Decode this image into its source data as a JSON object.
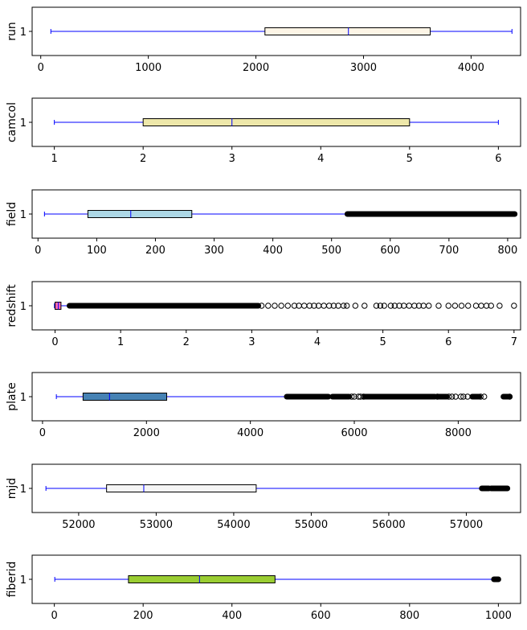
{
  "chart_data": [
    {
      "type": "boxplot",
      "ylabel": "run",
      "category": "1",
      "xlim": [
        -80,
        4460
      ],
      "xticks": [
        0,
        1000,
        2000,
        3000,
        4000
      ],
      "box": {
        "whisker_low": 94,
        "q1": 2084,
        "median": 2860,
        "q3": 3620,
        "whisker_high": 4380
      },
      "fill": "#fdf5e6",
      "outliers": []
    },
    {
      "type": "boxplot",
      "ylabel": "camcol",
      "category": "1",
      "xlim": [
        0.75,
        6.25
      ],
      "xticks": [
        1,
        2,
        3,
        4,
        5,
        6
      ],
      "box": {
        "whisker_low": 1,
        "q1": 2,
        "median": 3,
        "q3": 5,
        "whisker_high": 6
      },
      "fill": "#eee8aa",
      "outliers": []
    },
    {
      "type": "boxplot",
      "ylabel": "field",
      "category": "1",
      "xlim": [
        -10,
        822
      ],
      "xticks": [
        0,
        100,
        200,
        300,
        400,
        500,
        600,
        700,
        800
      ],
      "box": {
        "whisker_low": 11,
        "q1": 85,
        "median": 158,
        "q3": 262,
        "whisker_high": 525
      },
      "fill": "#add8e6",
      "outliers": [
        {
          "from": 527,
          "to": 812,
          "solid": true
        }
      ]
    },
    {
      "type": "boxplot",
      "ylabel": "redshift",
      "category": "1",
      "xlim": [
        -0.35,
        7.1
      ],
      "xticks": [
        0,
        1,
        2,
        3,
        4,
        5,
        6,
        7
      ],
      "box": {
        "whisker_low": -0.01,
        "q1": 0.0,
        "median": 0.05,
        "q3": 0.09,
        "whisker_high": 0.22
      },
      "fill": "#ff69b4",
      "outliers": [
        {
          "from": 0.22,
          "to": 3.1,
          "solid": true
        },
        {
          "from": 3.1,
          "to": 4.5,
          "solid": false,
          "values": [
            3.15,
            3.25,
            3.35,
            3.45,
            3.55,
            3.65,
            3.72,
            3.8,
            3.88,
            3.95,
            4.02,
            4.1,
            4.18,
            4.25,
            4.32,
            4.4,
            4.45
          ]
        },
        {
          "from": 4.5,
          "to": 7.0,
          "solid": false,
          "values": [
            4.58,
            4.72,
            4.9,
            4.96,
            5.02,
            5.12,
            5.18,
            5.25,
            5.32,
            5.4,
            5.48,
            5.55,
            5.62,
            5.7,
            5.85,
            6.0,
            6.1,
            6.2,
            6.3,
            6.42,
            6.5,
            6.58,
            6.65,
            6.78,
            7.0
          ]
        }
      ]
    },
    {
      "type": "boxplot",
      "ylabel": "plate",
      "category": "1",
      "xlim": [
        -200,
        9200
      ],
      "xticks": [
        0,
        2000,
        4000,
        6000,
        8000
      ],
      "box": {
        "whisker_low": 266,
        "q1": 780,
        "median": 1290,
        "q3": 2390,
        "whisker_high": 4700
      },
      "fill": "#4682b4",
      "outliers": [
        {
          "from": 4700,
          "to": 5500,
          "solid": true
        },
        {
          "from": 5580,
          "to": 5900,
          "solid": true
        },
        {
          "from": 6200,
          "to": 7550,
          "solid": true
        },
        {
          "from": 7620,
          "to": 7780,
          "solid": true
        },
        {
          "from": 8270,
          "to": 8400,
          "solid": true
        },
        {
          "from": 8870,
          "to": 8990,
          "solid": true
        },
        {
          "from": 5900,
          "to": 8990,
          "solid": false,
          "values": [
            5950,
            6000,
            6080,
            6120,
            6180,
            7600,
            7820,
            7880,
            7950,
            8050,
            8100,
            8180,
            8430,
            8500,
            8990
          ]
        }
      ]
    },
    {
      "type": "boxplot",
      "ylabel": "mjd",
      "category": "1",
      "xlim": [
        51400,
        57700
      ],
      "xticks": [
        52000,
        53000,
        54000,
        55000,
        56000,
        57000
      ],
      "box": {
        "whisker_low": 51578,
        "q1": 52360,
        "median": 52840,
        "q3": 54290,
        "whisker_high": 57200
      },
      "fill": "#f5f5f5",
      "outliers": [
        {
          "from": 57200,
          "to": 57290,
          "solid": true
        },
        {
          "from": 57320,
          "to": 57530,
          "solid": true
        }
      ]
    },
    {
      "type": "boxplot",
      "ylabel": "fiberid",
      "category": "1",
      "xlim": [
        -50,
        1050
      ],
      "xticks": [
        0,
        200,
        400,
        600,
        800,
        1000
      ],
      "box": {
        "whisker_low": 1,
        "q1": 167,
        "median": 327,
        "q3": 497,
        "whisker_high": 990
      },
      "fill": "#9acd32",
      "outliers": [
        {
          "from": 990,
          "to": 1000,
          "solid": true
        }
      ]
    }
  ]
}
